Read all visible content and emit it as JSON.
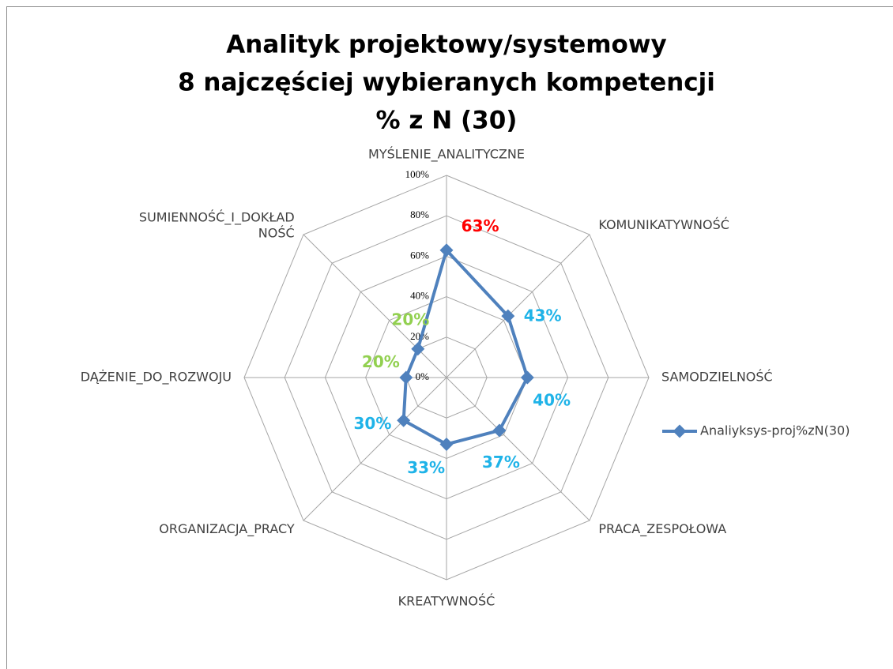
{
  "chart_data": {
    "type": "radar",
    "title": [
      "Analityk projektowy/systemowy",
      "8 najczęściej wybieranych kompetencji",
      "% z N (30)"
    ],
    "categories": [
      "MYŚLENIE_ANALITYCZNE",
      "KOMUNIKATYWNOŚĆ",
      "SAMODZIELNOŚĆ",
      "PRACA_ZESPOŁOWA",
      "KREATYWNOŚĆ",
      "ORGANIZACJA_PRACY",
      "DĄŻENIE_DO_ROZWOJU",
      "SUMIENNOŚĆ_I_DOKŁAD\nNOŚĆ"
    ],
    "series": [
      {
        "name": "Analiyksys-proj%zN(30)",
        "color": "#4f81bd",
        "values": [
          63,
          43,
          40,
          37,
          33,
          30,
          20,
          20
        ],
        "value_labels": [
          "63%",
          "43%",
          "40%",
          "37%",
          "33%",
          "30%",
          "20%",
          "20%"
        ],
        "value_label_colors": [
          "#ff0000",
          "#1fb3e8",
          "#1fb3e8",
          "#1fb3e8",
          "#1fb3e8",
          "#1fb3e8",
          "#92d050",
          "#92d050"
        ]
      }
    ],
    "ylim": [
      0,
      100
    ],
    "yticks": [
      {
        "value": 0,
        "label": "0%"
      },
      {
        "value": 20,
        "label": "20%"
      },
      {
        "value": 40,
        "label": "40%"
      },
      {
        "value": 60,
        "label": "60%"
      },
      {
        "value": 80,
        "label": "80%"
      },
      {
        "value": 100,
        "label": "100%"
      }
    ],
    "grid": true,
    "legend": "right"
  }
}
